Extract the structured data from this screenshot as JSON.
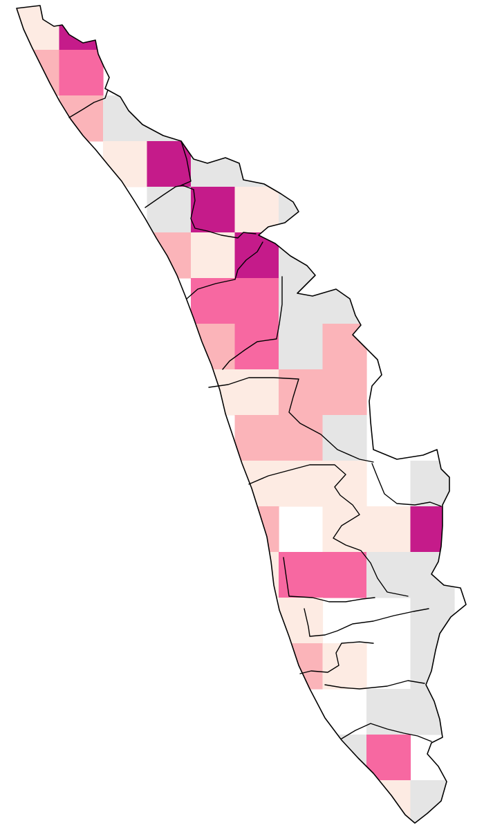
{
  "map": {
    "grid": {
      "cols": 11,
      "rows": 18
    },
    "palette": {
      "no_data": "#e5e5e5",
      "level_1": "#fdebe3",
      "level_2": "#fbb4b9",
      "level_3": "#f768a1",
      "level_4": "#c51b8a",
      "empty": "#ffffff",
      "border": "#000000"
    },
    "cells": [
      {
        "col": 0,
        "row": 0,
        "level": "level_1"
      },
      {
        "col": 1,
        "row": 0,
        "level": "level_4"
      },
      {
        "col": 0,
        "row": 1,
        "level": "level_2"
      },
      {
        "col": 1,
        "row": 1,
        "level": "level_3"
      },
      {
        "col": 1,
        "row": 2,
        "level": "level_2"
      },
      {
        "col": 2,
        "row": 2,
        "level": "no_data"
      },
      {
        "col": 3,
        "row": 2,
        "level": "no_data"
      },
      {
        "col": 2,
        "row": 3,
        "level": "level_1"
      },
      {
        "col": 3,
        "row": 3,
        "level": "level_4"
      },
      {
        "col": 4,
        "row": 3,
        "level": "no_data"
      },
      {
        "col": 5,
        "row": 3,
        "level": "no_data"
      },
      {
        "col": 3,
        "row": 4,
        "level": "no_data"
      },
      {
        "col": 4,
        "row": 4,
        "level": "level_4"
      },
      {
        "col": 5,
        "row": 4,
        "level": "level_1"
      },
      {
        "col": 6,
        "row": 4,
        "level": "no_data"
      },
      {
        "col": 3,
        "row": 5,
        "level": "level_2"
      },
      {
        "col": 4,
        "row": 5,
        "level": "level_1"
      },
      {
        "col": 5,
        "row": 5,
        "level": "level_4"
      },
      {
        "col": 6,
        "row": 5,
        "level": "no_data"
      },
      {
        "col": 4,
        "row": 6,
        "level": "level_3"
      },
      {
        "col": 5,
        "row": 6,
        "level": "level_3"
      },
      {
        "col": 6,
        "row": 6,
        "level": "no_data"
      },
      {
        "col": 7,
        "row": 6,
        "level": "no_data"
      },
      {
        "col": 4,
        "row": 7,
        "level": "level_2"
      },
      {
        "col": 5,
        "row": 7,
        "level": "level_3"
      },
      {
        "col": 6,
        "row": 7,
        "level": "no_data"
      },
      {
        "col": 7,
        "row": 7,
        "level": "level_2"
      },
      {
        "col": 4,
        "row": 8,
        "level": "level_1"
      },
      {
        "col": 5,
        "row": 8,
        "level": "level_1"
      },
      {
        "col": 6,
        "row": 8,
        "level": "level_2"
      },
      {
        "col": 7,
        "row": 8,
        "level": "level_2"
      },
      {
        "col": 5,
        "row": 9,
        "level": "level_2"
      },
      {
        "col": 6,
        "row": 9,
        "level": "level_2"
      },
      {
        "col": 7,
        "row": 9,
        "level": "no_data"
      },
      {
        "col": 5,
        "row": 10,
        "level": "level_1"
      },
      {
        "col": 6,
        "row": 10,
        "level": "level_1"
      },
      {
        "col": 7,
        "row": 10,
        "level": "level_1"
      },
      {
        "col": 9,
        "row": 10,
        "level": "no_data"
      },
      {
        "col": 5,
        "row": 11,
        "level": "level_2"
      },
      {
        "col": 7,
        "row": 11,
        "level": "level_1"
      },
      {
        "col": 8,
        "row": 11,
        "level": "level_1"
      },
      {
        "col": 9,
        "row": 11,
        "level": "level_4"
      },
      {
        "col": 5,
        "row": 12,
        "level": "level_1"
      },
      {
        "col": 6,
        "row": 12,
        "level": "level_3"
      },
      {
        "col": 7,
        "row": 12,
        "level": "level_3"
      },
      {
        "col": 8,
        "row": 12,
        "level": "no_data"
      },
      {
        "col": 9,
        "row": 12,
        "level": "no_data"
      },
      {
        "col": 6,
        "row": 13,
        "level": "level_1"
      },
      {
        "col": 9,
        "row": 13,
        "level": "no_data"
      },
      {
        "col": 6,
        "row": 14,
        "level": "level_2"
      },
      {
        "col": 7,
        "row": 14,
        "level": "level_1"
      },
      {
        "col": 9,
        "row": 14,
        "level": "no_data"
      },
      {
        "col": 8,
        "row": 15,
        "level": "no_data"
      },
      {
        "col": 9,
        "row": 15,
        "level": "no_data"
      },
      {
        "col": 7,
        "row": 16,
        "level": "no_data"
      },
      {
        "col": 8,
        "row": 16,
        "level": "level_3"
      },
      {
        "col": 8,
        "row": 17,
        "level": "level_1"
      },
      {
        "col": 9,
        "row": 17,
        "level": "no_data"
      }
    ]
  }
}
